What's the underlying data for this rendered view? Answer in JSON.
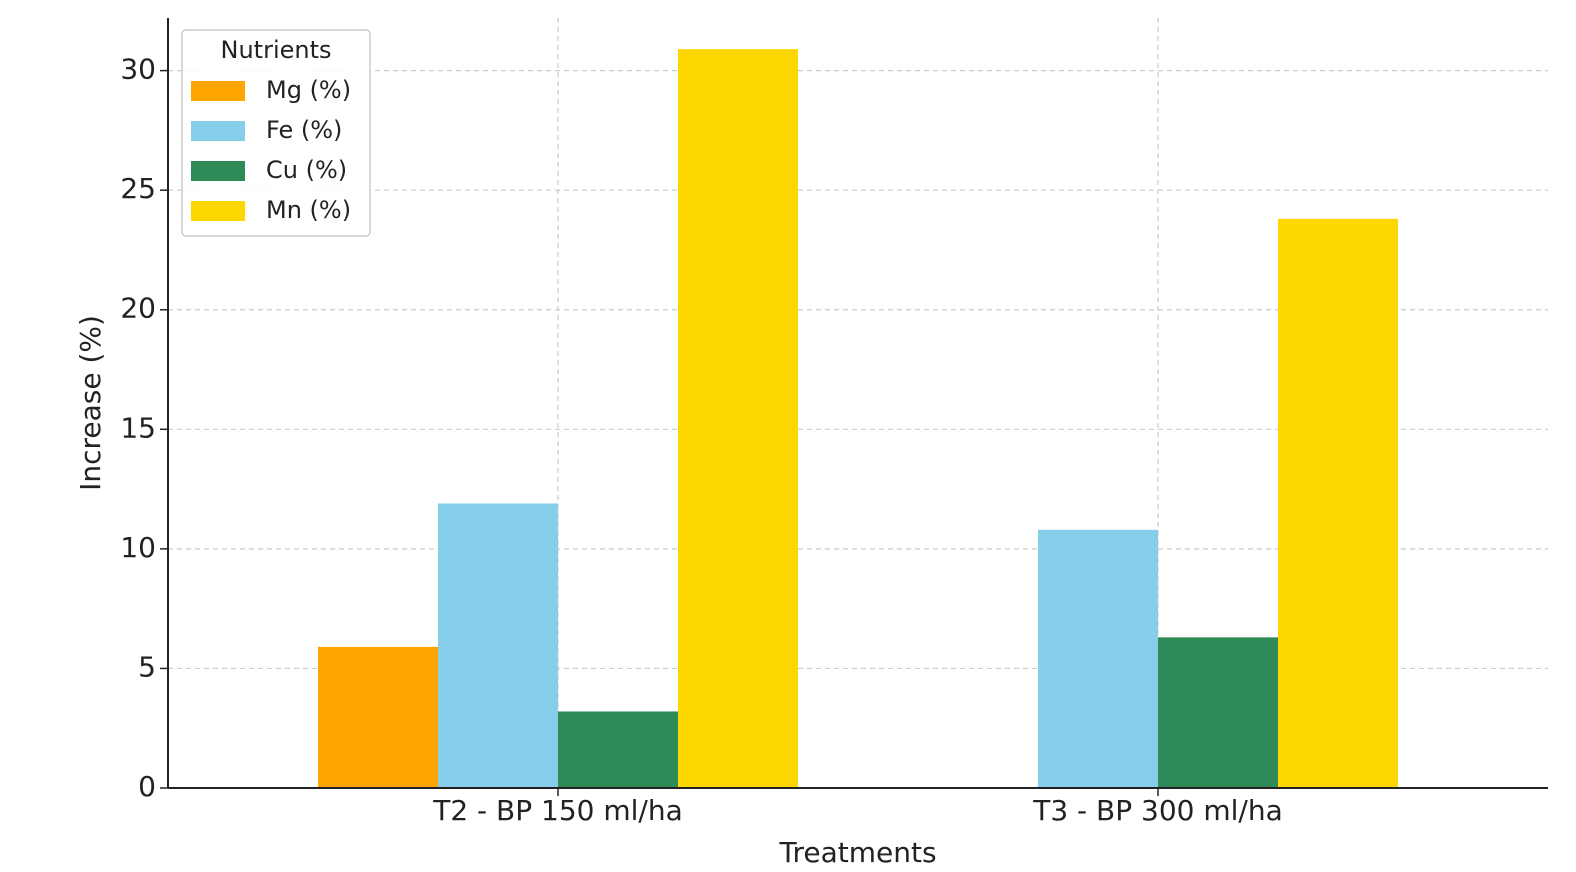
{
  "chart_data": {
    "type": "bar",
    "xlabel": "Treatments",
    "ylabel": "Increase (%)",
    "categories": [
      "T2 - BP 150 ml/ha",
      "T3 - BP 300 ml/ha"
    ],
    "series": [
      {
        "name": "Mg (%)",
        "color": "#FFA500",
        "values": [
          5.9,
          0
        ]
      },
      {
        "name": "Fe (%)",
        "color": "#87CEEB",
        "values": [
          11.9,
          10.8
        ]
      },
      {
        "name": "Cu (%)",
        "color": "#2E8B57",
        "values": [
          3.2,
          6.3
        ]
      },
      {
        "name": "Mn (%)",
        "color": "#FFD700",
        "values": [
          30.9,
          23.8
        ]
      }
    ],
    "ylim": [
      0,
      32.2
    ],
    "yticks": [
      0,
      5,
      10,
      15,
      20,
      25,
      30
    ],
    "grid": true,
    "legend": {
      "title": "Nutrients",
      "placement": "top-left"
    }
  }
}
